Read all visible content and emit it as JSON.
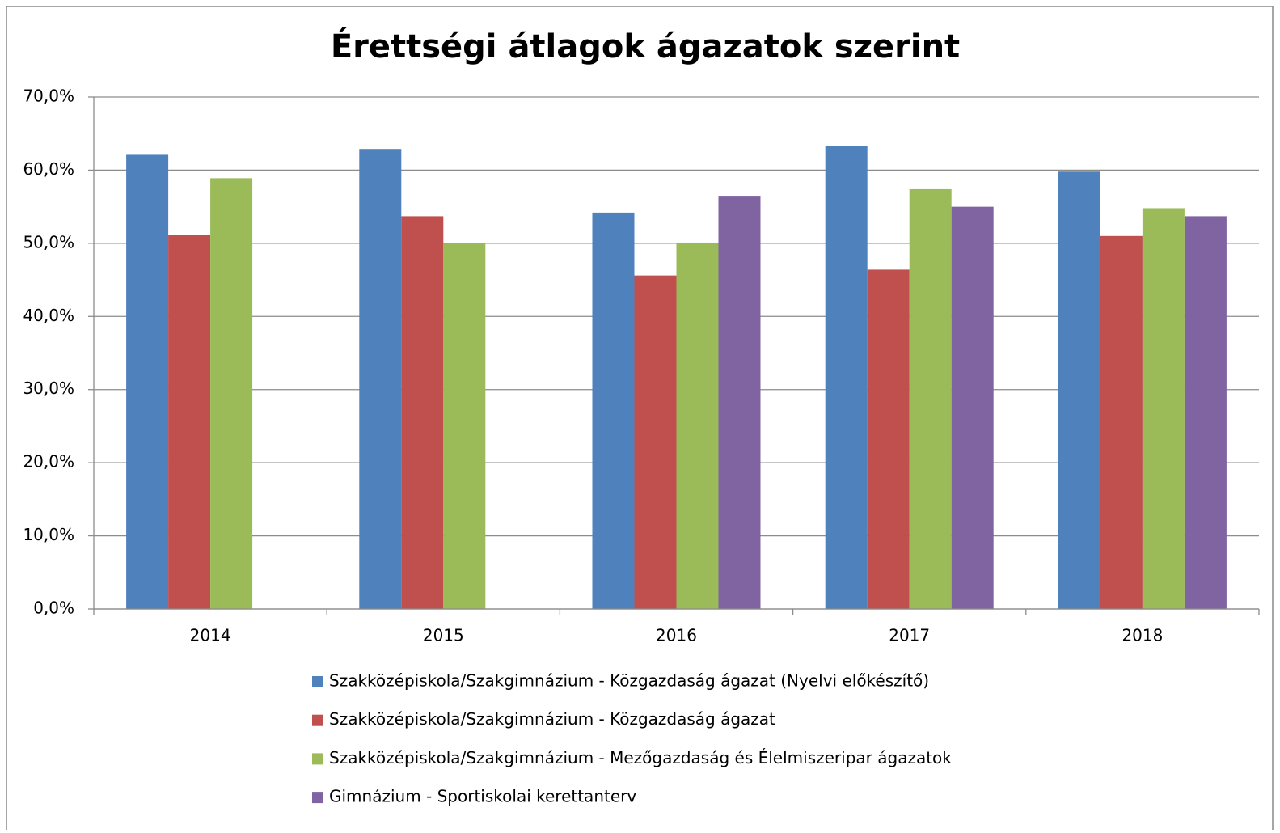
{
  "chart_data": {
    "type": "bar",
    "title": "Érettségi átlagok ágazatok szerint",
    "categories": [
      "2014",
      "2015",
      "2016",
      "2017",
      "2018"
    ],
    "series": [
      {
        "name": "Szakközépiskola/Szakgimnázium - Közgazdaság ágazat (Nyelvi előkészítő)",
        "color": "#4f81bd",
        "values": [
          62.1,
          62.9,
          54.2,
          63.3,
          59.8
        ]
      },
      {
        "name": "Szakközépiskola/Szakgimnázium - Közgazdaság ágazat",
        "color": "#c0504d",
        "values": [
          51.2,
          53.7,
          45.6,
          46.4,
          51.0
        ]
      },
      {
        "name": "Szakközépiskola/Szakgimnázium - Mezőgazdaság és Élelmiszeripar ágazatok",
        "color": "#9bbb59",
        "values": [
          58.9,
          50.0,
          50.1,
          57.4,
          54.8
        ]
      },
      {
        "name": "Gimnázium - Sportiskolai kerettanterv",
        "color": "#8064a2",
        "values": [
          null,
          null,
          56.5,
          55.0,
          53.7
        ]
      }
    ],
    "ylim": [
      0,
      70
    ],
    "yticks": [
      {
        "value": 0,
        "label": "0,0%"
      },
      {
        "value": 10,
        "label": "10,0%"
      },
      {
        "value": 20,
        "label": "20,0%"
      },
      {
        "value": 30,
        "label": "30,0%"
      },
      {
        "value": 40,
        "label": "40,0%"
      },
      {
        "value": 50,
        "label": "50,0%"
      },
      {
        "value": 60,
        "label": "60,0%"
      },
      {
        "value": 70,
        "label": "70,0%"
      }
    ],
    "grid": true,
    "legend": "bottom"
  }
}
